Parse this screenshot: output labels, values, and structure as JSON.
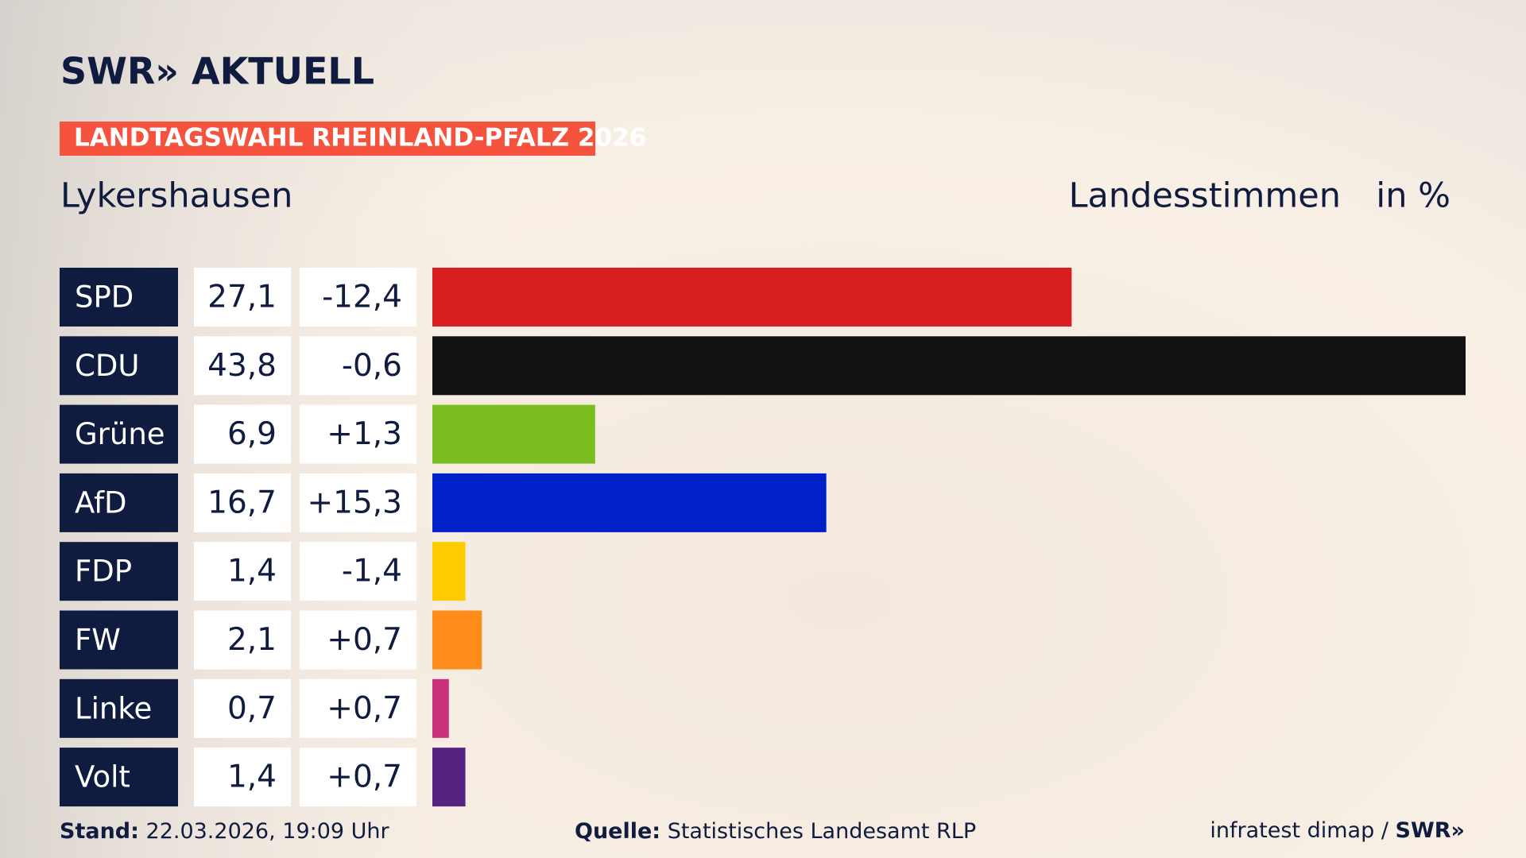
{
  "brand": "SWR» AKTUELL",
  "chart_data": {
    "type": "bar",
    "title": "LANDTAGSWAHL RHEINLAND-PFALZ 2026",
    "subtitle": "Lykershausen",
    "measure": "Landesstimmen",
    "unit": "in %",
    "categories": [
      "SPD",
      "CDU",
      "Grüne",
      "AfD",
      "FDP",
      "FW",
      "Linke",
      "Volt"
    ],
    "values": [
      27.1,
      43.8,
      6.9,
      16.7,
      1.4,
      2.1,
      0.7,
      1.4
    ],
    "value_labels": [
      "27,1",
      "43,8",
      "6,9",
      "16,7",
      "1,4",
      "2,1",
      "0,7",
      "1,4"
    ],
    "changes": [
      -12.4,
      -0.6,
      1.3,
      15.3,
      -1.4,
      0.7,
      0.7,
      0.7
    ],
    "change_labels": [
      "-12,4",
      "-0,6",
      "+1,3",
      "+15,3",
      "-1,4",
      "+0,7",
      "+0,7",
      "+0,7"
    ],
    "colors": [
      "#d81e1e",
      "#121212",
      "#7abd1e",
      "#0021c7",
      "#ffcc00",
      "#ff8c1a",
      "#c8307a",
      "#542480"
    ],
    "xlim": [
      0,
      43.8
    ]
  },
  "footer": {
    "date_label": "Stand:",
    "date": "22.03.2026, 19:09 Uhr",
    "source_label": "Quelle:",
    "source": "Statistisches Landesamt RLP",
    "credit": "infratest dimap /",
    "credit_brand": "SWR»"
  }
}
